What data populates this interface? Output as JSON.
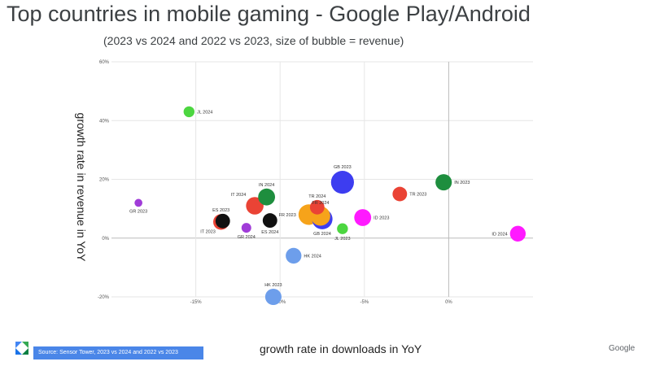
{
  "title": "Top countries in mobile gaming - Google Play/Android",
  "subtitle": "(2023 vs 2024 and 2022 vs 2023, size of bubble = revenue)",
  "source_note": "Source: Sensor Tower, 2023 vs 2024 and 2022 vs 2023",
  "brand": "Google",
  "logo_icon": "sensor-tower-logo-icon",
  "chart_data": {
    "type": "scatter",
    "subtype": "bubble",
    "xlabel": "growth rate in downloads in YoY",
    "ylabel": "growth rate in revenue in YoY",
    "xlim": [
      -20,
      5
    ],
    "ylim": [
      -20,
      60
    ],
    "x_ticks": [
      -15,
      -10,
      -5,
      0
    ],
    "x_tick_labels": [
      "-15%",
      "-10%",
      "-5%",
      "0%"
    ],
    "y_ticks": [
      -20,
      0,
      20,
      40,
      60
    ],
    "y_tick_labels": [
      "-20%",
      "0%",
      "20%",
      "40%",
      "60%"
    ],
    "grid": true,
    "points": [
      {
        "label": "JL 2024",
        "x": -15.4,
        "y": 43,
        "size": 1.0,
        "color": "#4cd640",
        "label_pos": "right"
      },
      {
        "label": "GR 2023",
        "x": -18.4,
        "y": 12,
        "size": 0.5,
        "color": "#a03cd8",
        "label_pos": "below"
      },
      {
        "label": "ES 2023",
        "x": -13.5,
        "y": 5.5,
        "size": 1.8,
        "color": "#ea4335",
        "label_pos": "above"
      },
      {
        "label": "IT 2023",
        "x": -13.4,
        "y": 5.8,
        "size": 1.6,
        "color": "#111111",
        "label_pos": "below-left"
      },
      {
        "label": "GR 2024",
        "x": -12.0,
        "y": 3.5,
        "size": 0.8,
        "color": "#a03cd8",
        "label_pos": "below"
      },
      {
        "label": "IT 2024",
        "x": -11.5,
        "y": 11,
        "size": 2.1,
        "color": "#ea4335",
        "label_pos": "above-left"
      },
      {
        "label": "IN 2024",
        "x": -10.8,
        "y": 14,
        "size": 2.0,
        "color": "#1e8e3e",
        "label_pos": "above"
      },
      {
        "label": "ES 2024",
        "x": -10.6,
        "y": 6,
        "size": 1.6,
        "color": "#111111",
        "label_pos": "below"
      },
      {
        "label": "HK 2024",
        "x": -9.2,
        "y": -6,
        "size": 1.8,
        "color": "#6d9eeb",
        "label_pos": "right"
      },
      {
        "label": "HK 2023",
        "x": -10.4,
        "y": -20,
        "size": 1.9,
        "color": "#6d9eeb",
        "label_pos": "above"
      },
      {
        "label": "FR 2023",
        "x": -8.3,
        "y": 8,
        "size": 2.6,
        "color": "#f6a31a",
        "label_pos": "left"
      },
      {
        "label": "TR 2024",
        "x": -7.8,
        "y": 10.5,
        "size": 1.6,
        "color": "#ea4335",
        "label_pos": "above"
      },
      {
        "label": "FR 2024",
        "x": -7.6,
        "y": 7.5,
        "size": 2.4,
        "color": "#f6a31a",
        "label_pos": "above"
      },
      {
        "label": "GB 2024",
        "x": -7.5,
        "y": 6.5,
        "size": 2.6,
        "color": "#3d3df0",
        "label_pos": "below"
      },
      {
        "label": "JL 2023",
        "x": -6.3,
        "y": 3.2,
        "size": 1.0,
        "color": "#4cd640",
        "label_pos": "below"
      },
      {
        "label": "GB 2023",
        "x": -6.3,
        "y": 19,
        "size": 3.0,
        "color": "#3d3df0",
        "label_pos": "above"
      },
      {
        "label": "ID 2023",
        "x": -5.1,
        "y": 7,
        "size": 2.0,
        "color": "#ff1aff",
        "label_pos": "right"
      },
      {
        "label": "TR 2023",
        "x": -2.9,
        "y": 15,
        "size": 1.6,
        "color": "#ea4335",
        "label_pos": "right"
      },
      {
        "label": "IN 2023",
        "x": -0.3,
        "y": 19,
        "size": 1.9,
        "color": "#1e8e3e",
        "label_pos": "right"
      },
      {
        "label": "ID 2024",
        "x": 4.1,
        "y": 1.5,
        "size": 1.8,
        "color": "#ff1aff",
        "label_pos": "left"
      }
    ]
  }
}
